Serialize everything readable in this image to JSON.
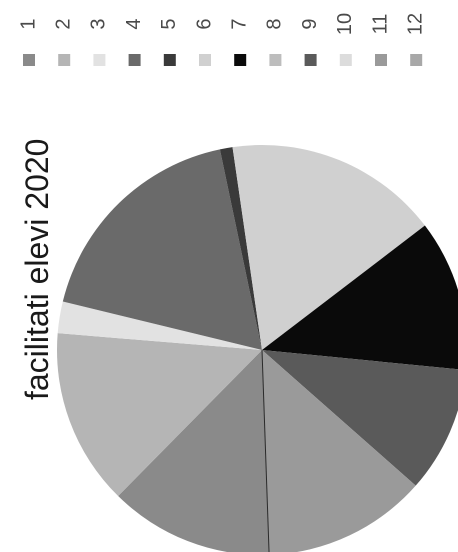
{
  "chart_data": {
    "type": "pie",
    "title": "facilitati elevi 2020",
    "categories": [
      "1",
      "2",
      "3",
      "4",
      "5",
      "6",
      "7",
      "8",
      "9",
      "10",
      "11",
      "12"
    ],
    "values": [
      13,
      14,
      2.5,
      18,
      1,
      17,
      12,
      0,
      10,
      0,
      13,
      0
    ],
    "colors": [
      "#8a8a8a",
      "#b5b5b5",
      "#e2e2e2",
      "#6a6a6a",
      "#3a3a3a",
      "#d0d0d0",
      "#0a0a0a",
      "#bdbdbd",
      "#5a5a5a",
      "#dcdcdc",
      "#9a9a9a",
      "#a8a8a8"
    ],
    "legend": "top, rotated",
    "orientation": "rotated 90 degrees"
  }
}
